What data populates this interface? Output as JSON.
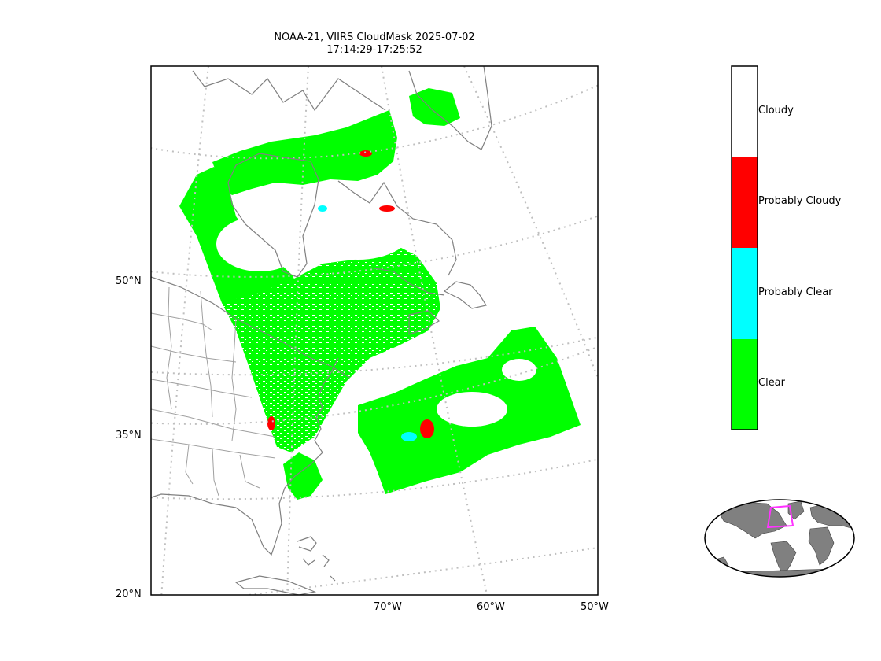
{
  "title": {
    "line1": "NOAA-21, VIIRS CloudMask 2025-07-02",
    "line2": "17:14:29-17:25:52"
  },
  "axes": {
    "lat_ticks": [
      "50°N",
      "35°N",
      "20°N"
    ],
    "lon_ticks": [
      "70°W",
      "60°W",
      "50°W"
    ]
  },
  "legend": {
    "categories": [
      {
        "label": "Cloudy",
        "color": "#ffffff"
      },
      {
        "label": "Probably Cloudy",
        "color": "#ff0000"
      },
      {
        "label": "Probably Clear",
        "color": "#00ffff"
      },
      {
        "label": "Clear",
        "color": "#00ff00"
      }
    ]
  },
  "colors": {
    "coastline": "#808080",
    "graticule": "#bfbfbf",
    "inset_land": "#808080",
    "inset_box": "#ff33ff"
  }
}
